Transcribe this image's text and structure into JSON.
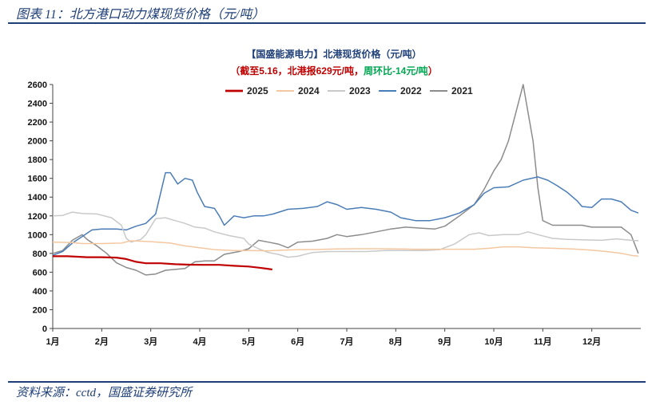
{
  "figure": {
    "caption": "图表 11：北方港口动力煤现货价格（元/吨）",
    "source": "资料来源：cctd，国盛证券研究所"
  },
  "colors": {
    "frame": "#1f3f78",
    "subtitle_red": "#c00000",
    "subtitle_green": "#00a651"
  },
  "chart_data": {
    "type": "line",
    "title": "【国盛能源电力】北港现货价格（元/吨）",
    "subtitle": {
      "part1": "（截至5.16，北港报629元/吨，",
      "part2": "周环比-14元/吨",
      "part3": "）"
    },
    "xlabel": "",
    "ylabel": "",
    "x_ticks": [
      "1月",
      "2月",
      "3月",
      "4月",
      "5月",
      "6月",
      "7月",
      "8月",
      "9月",
      "10月",
      "11月",
      "12月"
    ],
    "x_range": [
      1,
      13
    ],
    "ylim": [
      0,
      2600
    ],
    "y_ticks": [
      0,
      200,
      400,
      600,
      800,
      1000,
      1200,
      1400,
      1600,
      1800,
      2000,
      2200,
      2400,
      2600
    ],
    "grid": false,
    "legend_position": "top",
    "series": [
      {
        "name": "2025",
        "color": "#c00000",
        "width": 2.2,
        "points": [
          [
            1.0,
            770
          ],
          [
            1.3,
            770
          ],
          [
            1.5,
            765
          ],
          [
            1.7,
            760
          ],
          [
            2.0,
            760
          ],
          [
            2.3,
            755
          ],
          [
            2.5,
            740
          ],
          [
            2.7,
            710
          ],
          [
            2.9,
            695
          ],
          [
            3.2,
            695
          ],
          [
            3.5,
            685
          ],
          [
            3.8,
            680
          ],
          [
            4.1,
            678
          ],
          [
            4.4,
            678
          ],
          [
            4.7,
            668
          ],
          [
            5.0,
            660
          ],
          [
            5.2,
            648
          ],
          [
            5.35,
            638
          ],
          [
            5.48,
            629
          ]
        ]
      },
      {
        "name": "2024",
        "color": "#f4c7a0",
        "width": 1.5,
        "points": [
          [
            1.0,
            920
          ],
          [
            1.4,
            915
          ],
          [
            1.6,
            905
          ],
          [
            2.0,
            905
          ],
          [
            2.4,
            910
          ],
          [
            2.6,
            935
          ],
          [
            3.0,
            925
          ],
          [
            3.4,
            910
          ],
          [
            3.7,
            880
          ],
          [
            4.0,
            860
          ],
          [
            4.3,
            840
          ],
          [
            4.7,
            830
          ],
          [
            5.0,
            830
          ],
          [
            5.4,
            828
          ],
          [
            5.7,
            835
          ],
          [
            6.0,
            840
          ],
          [
            6.4,
            842
          ],
          [
            6.8,
            848
          ],
          [
            7.2,
            850
          ],
          [
            7.6,
            850
          ],
          [
            8.0,
            848
          ],
          [
            8.4,
            845
          ],
          [
            8.8,
            845
          ],
          [
            9.2,
            845
          ],
          [
            9.6,
            845
          ],
          [
            9.9,
            855
          ],
          [
            10.2,
            870
          ],
          [
            10.5,
            870
          ],
          [
            10.8,
            860
          ],
          [
            11.2,
            855
          ],
          [
            11.6,
            848
          ],
          [
            12.0,
            835
          ],
          [
            12.3,
            820
          ],
          [
            12.6,
            800
          ],
          [
            12.8,
            780
          ],
          [
            12.95,
            770
          ]
        ]
      },
      {
        "name": "2023",
        "color": "#c9c9c9",
        "width": 1.5,
        "points": [
          [
            1.0,
            1200
          ],
          [
            1.2,
            1205
          ],
          [
            1.4,
            1240
          ],
          [
            1.6,
            1225
          ],
          [
            1.9,
            1220
          ],
          [
            2.2,
            1180
          ],
          [
            2.4,
            1100
          ],
          [
            2.5,
            960
          ],
          [
            2.6,
            920
          ],
          [
            2.8,
            950
          ],
          [
            2.9,
            1000
          ],
          [
            3.1,
            1170
          ],
          [
            3.3,
            1180
          ],
          [
            3.5,
            1150
          ],
          [
            3.7,
            1120
          ],
          [
            3.9,
            1080
          ],
          [
            4.1,
            1070
          ],
          [
            4.3,
            1030
          ],
          [
            4.6,
            990
          ],
          [
            4.9,
            960
          ],
          [
            5.0,
            900
          ],
          [
            5.2,
            850
          ],
          [
            5.4,
            810
          ],
          [
            5.6,
            790
          ],
          [
            5.8,
            760
          ],
          [
            6.0,
            770
          ],
          [
            6.3,
            810
          ],
          [
            6.6,
            820
          ],
          [
            7.0,
            820
          ],
          [
            7.4,
            820
          ],
          [
            7.8,
            830
          ],
          [
            8.2,
            830
          ],
          [
            8.6,
            830
          ],
          [
            8.9,
            840
          ],
          [
            9.2,
            900
          ],
          [
            9.5,
            1000
          ],
          [
            9.7,
            1020
          ],
          [
            9.9,
            990
          ],
          [
            10.2,
            1000
          ],
          [
            10.5,
            1000
          ],
          [
            10.7,
            1030
          ],
          [
            10.9,
            1000
          ],
          [
            11.2,
            960
          ],
          [
            11.5,
            950
          ],
          [
            11.8,
            945
          ],
          [
            12.2,
            940
          ],
          [
            12.5,
            955
          ],
          [
            12.8,
            940
          ],
          [
            12.95,
            935
          ]
        ]
      },
      {
        "name": "2022",
        "color": "#4a7cb7",
        "width": 1.5,
        "points": [
          [
            1.0,
            780
          ],
          [
            1.2,
            820
          ],
          [
            1.4,
            910
          ],
          [
            1.6,
            980
          ],
          [
            1.8,
            1050
          ],
          [
            2.0,
            1060
          ],
          [
            2.3,
            1060
          ],
          [
            2.5,
            1050
          ],
          [
            2.7,
            1090
          ],
          [
            2.9,
            1120
          ],
          [
            3.1,
            1220
          ],
          [
            3.3,
            1660
          ],
          [
            3.4,
            1660
          ],
          [
            3.55,
            1540
          ],
          [
            3.7,
            1600
          ],
          [
            3.85,
            1580
          ],
          [
            3.95,
            1450
          ],
          [
            4.1,
            1300
          ],
          [
            4.3,
            1280
          ],
          [
            4.4,
            1200
          ],
          [
            4.5,
            1100
          ],
          [
            4.7,
            1200
          ],
          [
            4.9,
            1180
          ],
          [
            5.1,
            1200
          ],
          [
            5.3,
            1200
          ],
          [
            5.5,
            1220
          ],
          [
            5.8,
            1270
          ],
          [
            6.1,
            1280
          ],
          [
            6.4,
            1300
          ],
          [
            6.6,
            1350
          ],
          [
            6.8,
            1320
          ],
          [
            7.0,
            1270
          ],
          [
            7.3,
            1290
          ],
          [
            7.6,
            1270
          ],
          [
            7.9,
            1240
          ],
          [
            8.1,
            1180
          ],
          [
            8.4,
            1150
          ],
          [
            8.7,
            1150
          ],
          [
            9.0,
            1180
          ],
          [
            9.3,
            1230
          ],
          [
            9.6,
            1320
          ],
          [
            9.8,
            1440
          ],
          [
            10.0,
            1500
          ],
          [
            10.3,
            1510
          ],
          [
            10.6,
            1580
          ],
          [
            10.9,
            1615
          ],
          [
            11.1,
            1580
          ],
          [
            11.3,
            1520
          ],
          [
            11.5,
            1450
          ],
          [
            11.7,
            1360
          ],
          [
            11.8,
            1300
          ],
          [
            12.0,
            1290
          ],
          [
            12.2,
            1380
          ],
          [
            12.4,
            1380
          ],
          [
            12.6,
            1350
          ],
          [
            12.8,
            1260
          ],
          [
            12.95,
            1230
          ]
        ]
      },
      {
        "name": "2021",
        "color": "#8c8c8c",
        "width": 1.5,
        "points": [
          [
            1.0,
            800
          ],
          [
            1.2,
            830
          ],
          [
            1.4,
            940
          ],
          [
            1.6,
            1000
          ],
          [
            1.7,
            950
          ],
          [
            1.9,
            880
          ],
          [
            2.1,
            800
          ],
          [
            2.3,
            700
          ],
          [
            2.5,
            650
          ],
          [
            2.7,
            620
          ],
          [
            2.9,
            570
          ],
          [
            3.1,
            580
          ],
          [
            3.3,
            620
          ],
          [
            3.5,
            630
          ],
          [
            3.7,
            640
          ],
          [
            3.9,
            710
          ],
          [
            4.1,
            720
          ],
          [
            4.3,
            720
          ],
          [
            4.5,
            790
          ],
          [
            4.8,
            820
          ],
          [
            5.0,
            850
          ],
          [
            5.2,
            940
          ],
          [
            5.4,
            920
          ],
          [
            5.6,
            900
          ],
          [
            5.8,
            860
          ],
          [
            6.0,
            920
          ],
          [
            6.3,
            930
          ],
          [
            6.6,
            960
          ],
          [
            6.8,
            1000
          ],
          [
            7.0,
            980
          ],
          [
            7.3,
            1000
          ],
          [
            7.6,
            1030
          ],
          [
            7.9,
            1060
          ],
          [
            8.2,
            1080
          ],
          [
            8.5,
            1070
          ],
          [
            8.8,
            1060
          ],
          [
            9.0,
            1090
          ],
          [
            9.3,
            1200
          ],
          [
            9.6,
            1320
          ],
          [
            9.8,
            1480
          ],
          [
            10.0,
            1680
          ],
          [
            10.15,
            1800
          ],
          [
            10.3,
            2000
          ],
          [
            10.45,
            2300
          ],
          [
            10.6,
            2600
          ],
          [
            10.7,
            2300
          ],
          [
            10.8,
            2000
          ],
          [
            10.9,
            1500
          ],
          [
            11.0,
            1150
          ],
          [
            11.2,
            1100
          ],
          [
            11.5,
            1100
          ],
          [
            11.8,
            1100
          ],
          [
            12.0,
            1080
          ],
          [
            12.3,
            1080
          ],
          [
            12.6,
            1080
          ],
          [
            12.8,
            1000
          ],
          [
            12.95,
            800
          ]
        ]
      }
    ]
  }
}
